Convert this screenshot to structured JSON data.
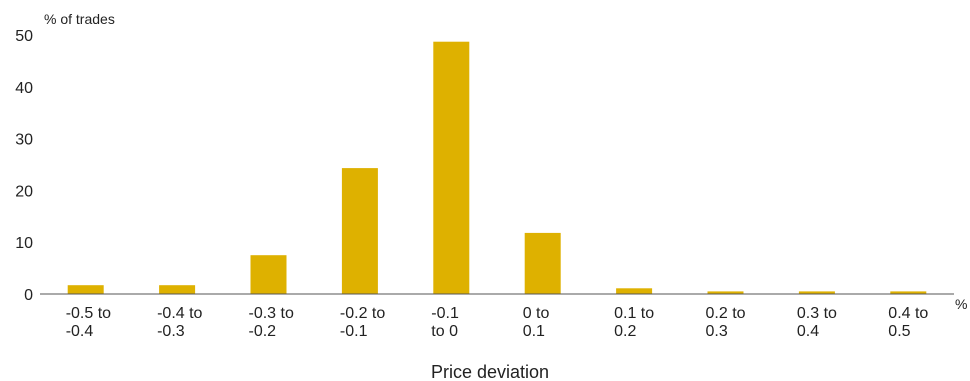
{
  "chart_data": {
    "type": "bar",
    "ylabel": "% of trades",
    "xlabel": "Price deviation",
    "x_unit": "%",
    "categories": [
      [
        "-0.5 to",
        "-0.4"
      ],
      [
        "-0.4 to",
        "-0.3"
      ],
      [
        "-0.3 to",
        "-0.2"
      ],
      [
        "-0.2 to",
        "-0.1"
      ],
      [
        "-0.1",
        "to 0"
      ],
      [
        "0 to",
        "0.1"
      ],
      [
        "0.1 to",
        "0.2"
      ],
      [
        "0.2 to",
        "0.3"
      ],
      [
        "0.3 to",
        "0.4"
      ],
      [
        "0.4 to",
        "0.5"
      ]
    ],
    "values": [
      1.7,
      1.7,
      7.5,
      24.3,
      48.7,
      11.8,
      1.1,
      0.5,
      0.5,
      0.5
    ],
    "ylim": [
      0,
      50
    ],
    "yticks": [
      "0",
      "10",
      "20",
      "30",
      "40",
      "50"
    ],
    "bar_color": "#deb100",
    "grid": false
  }
}
